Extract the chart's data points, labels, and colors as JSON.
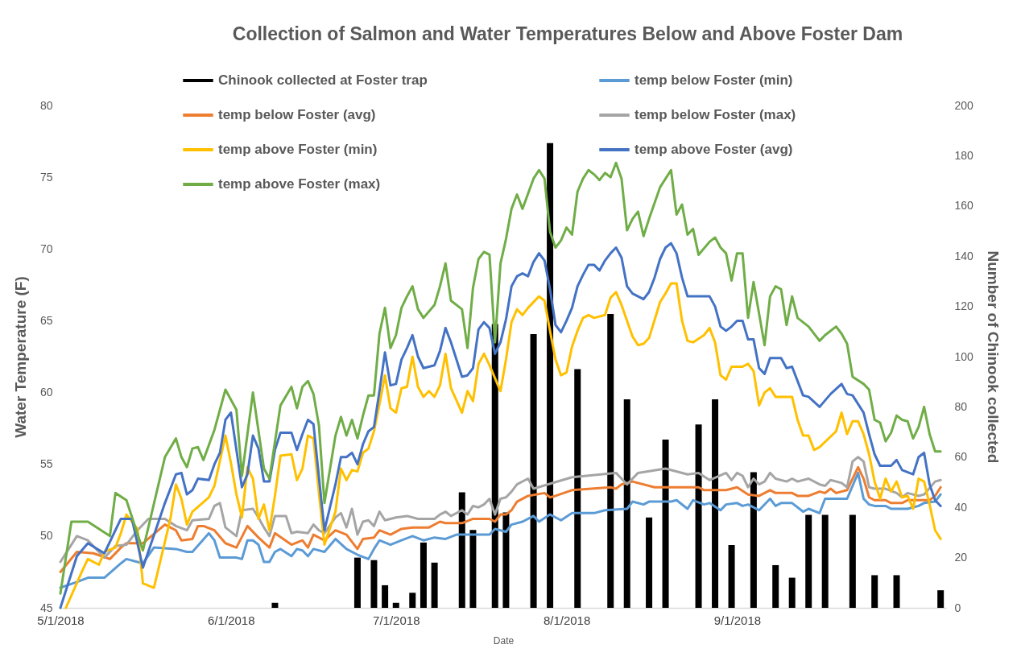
{
  "chart_data": {
    "type": "line",
    "title": "Collection of Salmon and Water Temperatures Below and Above Foster Dam",
    "xlabel": "Date",
    "ylabel": "Water Temperature (F)",
    "y2label": "Number of Chinook collected",
    "legend": "top",
    "xlim": [
      "2018-05-01",
      "2018-10-09"
    ],
    "xticks": [
      {
        "value": "2018-05-01",
        "label": "5/1/2018"
      },
      {
        "value": "2018-06-01",
        "label": "6/1/2018"
      },
      {
        "value": "2018-07-01",
        "label": "7/1/2018"
      },
      {
        "value": "2018-08-01",
        "label": "8/1/2018"
      },
      {
        "value": "2018-09-01",
        "label": "9/1/2018"
      }
    ],
    "ylim": [
      45,
      80
    ],
    "yticks": [
      45,
      50,
      55,
      60,
      65,
      70,
      75,
      80
    ],
    "y2lim": [
      0,
      200
    ],
    "y2ticks": [
      0,
      20,
      40,
      60,
      80,
      100,
      120,
      140,
      160,
      180,
      200
    ],
    "series": [
      {
        "name": "Chinook collected at Foster trap",
        "type": "bar",
        "axis": "y2",
        "color": "#000000",
        "x": [
          "2018-06-09",
          "2018-06-24",
          "2018-06-27",
          "2018-06-29",
          "2018-07-01",
          "2018-07-04",
          "2018-07-06",
          "2018-07-08",
          "2018-07-13",
          "2018-07-15",
          "2018-07-19",
          "2018-07-21",
          "2018-07-26",
          "2018-07-29",
          "2018-08-03",
          "2018-08-09",
          "2018-08-12",
          "2018-08-16",
          "2018-08-19",
          "2018-08-25",
          "2018-08-28",
          "2018-08-31",
          "2018-09-04",
          "2018-09-08",
          "2018-09-11",
          "2018-09-14",
          "2018-09-17",
          "2018-09-22",
          "2018-09-26",
          "2018-09-30",
          "2018-10-08"
        ],
        "values": [
          2,
          20,
          19,
          9,
          2,
          6,
          26,
          18,
          46,
          31,
          113,
          38,
          109,
          185,
          95,
          117,
          83,
          36,
          67,
          73,
          83,
          25,
          54,
          17,
          12,
          37,
          37,
          37,
          13,
          13,
          7
        ]
      },
      {
        "name": "temp below Foster (min)",
        "color": "#5b9bd5",
        "x": [
          "2018-05-01",
          "2018-05-04",
          "2018-05-06",
          "2018-05-09",
          "2018-05-12",
          "2018-05-13",
          "2018-05-16",
          "2018-05-18",
          "2018-05-22",
          "2018-05-24",
          "2018-05-25",
          "2018-05-28",
          "2018-05-29",
          "2018-05-30",
          "2018-06-02",
          "2018-06-03",
          "2018-06-04",
          "2018-06-05",
          "2018-06-06",
          "2018-06-07",
          "2018-06-08",
          "2018-06-09",
          "2018-06-10",
          "2018-06-12",
          "2018-06-13",
          "2018-06-14",
          "2018-06-15",
          "2018-06-16",
          "2018-06-18",
          "2018-06-20",
          "2018-06-22",
          "2018-06-24",
          "2018-06-26",
          "2018-06-27",
          "2018-06-28",
          "2018-06-30",
          "2018-07-02",
          "2018-07-04",
          "2018-07-06",
          "2018-07-08",
          "2018-07-10",
          "2018-07-12",
          "2018-07-16",
          "2018-07-18",
          "2018-07-19",
          "2018-07-21",
          "2018-07-22",
          "2018-07-24",
          "2018-07-26",
          "2018-07-27",
          "2018-07-29",
          "2018-07-31",
          "2018-08-02",
          "2018-08-06",
          "2018-08-08",
          "2018-08-12",
          "2018-08-13",
          "2018-08-15",
          "2018-08-16",
          "2018-08-20",
          "2018-08-21",
          "2018-08-23",
          "2018-08-24",
          "2018-08-26",
          "2018-08-27",
          "2018-08-29",
          "2018-08-30",
          "2018-09-01",
          "2018-09-02",
          "2018-09-03",
          "2018-09-05",
          "2018-09-07",
          "2018-09-08",
          "2018-09-09",
          "2018-09-11",
          "2018-09-13",
          "2018-09-14",
          "2018-09-16",
          "2018-09-17",
          "2018-09-21",
          "2018-09-23",
          "2018-09-24",
          "2018-09-25",
          "2018-09-26",
          "2018-09-28",
          "2018-09-29",
          "2018-10-02",
          "2018-10-04",
          "2018-10-05",
          "2018-10-07",
          "2018-10-08"
        ],
        "values": [
          46.4,
          46.8,
          47.1,
          47.1,
          48.1,
          48.4,
          48.1,
          49.2,
          49.1,
          48.9,
          48.9,
          50.2,
          49.7,
          48.5,
          48.5,
          48.4,
          49.7,
          49.7,
          49.4,
          48.2,
          48.2,
          48.9,
          49.1,
          48.6,
          49.1,
          49.0,
          48.6,
          49.1,
          48.9,
          49.8,
          49.1,
          48.7,
          48.4,
          49.1,
          49.7,
          49.4,
          49.7,
          50.0,
          49.7,
          49.9,
          49.8,
          50.1,
          50.1,
          50.1,
          50.5,
          50.3,
          50.8,
          51.0,
          51.4,
          51.0,
          51.5,
          51.1,
          51.6,
          51.6,
          51.8,
          51.9,
          52.4,
          52.2,
          52.4,
          52.4,
          52.5,
          51.9,
          52.5,
          52.2,
          52.3,
          51.8,
          52.2,
          52.3,
          52.1,
          52.2,
          51.8,
          52.6,
          52.1,
          52.3,
          52.3,
          51.7,
          51.9,
          51.6,
          52.6,
          52.6,
          54.4,
          52.6,
          52.2,
          52.1,
          52.1,
          51.9,
          51.9,
          52.1,
          52.3,
          52.4,
          52.9
        ]
      },
      {
        "name": "temp below Foster (avg)",
        "color": "#ed7d31",
        "x": [
          "2018-05-01",
          "2018-05-04",
          "2018-05-07",
          "2018-05-10",
          "2018-05-12",
          "2018-05-13",
          "2018-05-16",
          "2018-05-20",
          "2018-05-22",
          "2018-05-23",
          "2018-05-25",
          "2018-05-26",
          "2018-05-27",
          "2018-05-29",
          "2018-05-31",
          "2018-06-02",
          "2018-06-04",
          "2018-06-06",
          "2018-06-08",
          "2018-06-09",
          "2018-06-12",
          "2018-06-14",
          "2018-06-15",
          "2018-06-16",
          "2018-06-18",
          "2018-06-20",
          "2018-06-22",
          "2018-06-24",
          "2018-06-25",
          "2018-06-27",
          "2018-06-28",
          "2018-06-30",
          "2018-07-02",
          "2018-07-04",
          "2018-07-07",
          "2018-07-09",
          "2018-07-10",
          "2018-07-13",
          "2018-07-15",
          "2018-07-18",
          "2018-07-19",
          "2018-07-20",
          "2018-07-21",
          "2018-07-22",
          "2018-07-23",
          "2018-07-25",
          "2018-07-28",
          "2018-07-29",
          "2018-07-30",
          "2018-08-02",
          "2018-08-09",
          "2018-08-10",
          "2018-08-11",
          "2018-08-13",
          "2018-08-17",
          "2018-08-25",
          "2018-08-26",
          "2018-08-30",
          "2018-09-01",
          "2018-09-03",
          "2018-09-05",
          "2018-09-07",
          "2018-09-08",
          "2018-09-11",
          "2018-09-12",
          "2018-09-14",
          "2018-09-16",
          "2018-09-17",
          "2018-09-18",
          "2018-09-19",
          "2018-09-21",
          "2018-09-23",
          "2018-09-24",
          "2018-09-25",
          "2018-09-26",
          "2018-09-28",
          "2018-09-29",
          "2018-10-01",
          "2018-10-02",
          "2018-10-06",
          "2018-10-07",
          "2018-10-08"
        ],
        "values": [
          47.5,
          48.9,
          48.8,
          48.4,
          49.2,
          49.5,
          49.5,
          50.8,
          50.4,
          49.7,
          49.8,
          50.7,
          50.7,
          50.4,
          49.5,
          49.2,
          50.7,
          49.9,
          49.2,
          50.2,
          49.4,
          49.7,
          49.2,
          50.1,
          49.7,
          50.4,
          50.1,
          49.1,
          49.8,
          49.9,
          50.4,
          50.1,
          50.5,
          50.6,
          50.6,
          51.0,
          50.9,
          50.9,
          51.2,
          51.2,
          51.0,
          51.5,
          51.5,
          51.8,
          52.4,
          52.8,
          53.0,
          52.7,
          52.8,
          53.2,
          53.4,
          53.3,
          53.6,
          53.8,
          53.4,
          53.4,
          53.2,
          53.2,
          53.4,
          52.9,
          52.8,
          53.2,
          53.0,
          53.0,
          52.8,
          52.8,
          53.1,
          53.0,
          53.3,
          53.0,
          53.2,
          54.8,
          54.0,
          52.7,
          52.5,
          52.5,
          52.3,
          52.3,
          52.5,
          52.5,
          52.8,
          53.4
        ]
      },
      {
        "name": "temp below Foster (max)",
        "color": "#a5a5a5",
        "x": [
          "2018-05-01",
          "2018-05-04",
          "2018-05-06",
          "2018-05-09",
          "2018-05-11",
          "2018-05-13",
          "2018-05-15",
          "2018-05-17",
          "2018-05-20",
          "2018-05-22",
          "2018-05-24",
          "2018-05-25",
          "2018-05-28",
          "2018-05-29",
          "2018-05-30",
          "2018-05-31",
          "2018-06-02",
          "2018-06-03",
          "2018-06-05",
          "2018-06-06",
          "2018-06-07",
          "2018-06-08",
          "2018-06-09",
          "2018-06-11",
          "2018-06-12",
          "2018-06-13",
          "2018-06-15",
          "2018-06-16",
          "2018-06-17",
          "2018-06-18",
          "2018-06-20",
          "2018-06-21",
          "2018-06-22",
          "2018-06-23",
          "2018-06-24",
          "2018-06-25",
          "2018-06-26",
          "2018-06-27",
          "2018-06-28",
          "2018-06-29",
          "2018-07-01",
          "2018-07-03",
          "2018-07-05",
          "2018-07-08",
          "2018-07-09",
          "2018-07-10",
          "2018-07-11",
          "2018-07-13",
          "2018-07-14",
          "2018-07-15",
          "2018-07-16",
          "2018-07-17",
          "2018-07-18",
          "2018-07-19",
          "2018-07-20",
          "2018-07-21",
          "2018-07-22",
          "2018-07-23",
          "2018-07-25",
          "2018-07-26",
          "2018-08-02",
          "2018-08-10",
          "2018-08-12",
          "2018-08-14",
          "2018-08-19",
          "2018-08-23",
          "2018-08-25",
          "2018-08-27",
          "2018-08-30",
          "2018-08-31",
          "2018-09-01",
          "2018-09-02",
          "2018-09-03",
          "2018-09-04",
          "2018-09-05",
          "2018-09-06",
          "2018-09-07",
          "2018-09-08",
          "2018-09-10",
          "2018-09-11",
          "2018-09-12",
          "2018-09-14",
          "2018-09-16",
          "2018-09-17",
          "2018-09-18",
          "2018-09-20",
          "2018-09-21",
          "2018-09-22",
          "2018-09-23",
          "2018-09-24",
          "2018-09-25",
          "2018-09-26",
          "2018-09-28",
          "2018-09-30",
          "2018-10-01",
          "2018-10-02",
          "2018-10-04",
          "2018-10-05",
          "2018-10-07",
          "2018-10-08"
        ],
        "values": [
          48.2,
          50.0,
          49.7,
          48.5,
          49.3,
          49.4,
          50.4,
          51.2,
          51.2,
          50.7,
          50.4,
          51.1,
          51.2,
          52.1,
          52.3,
          50.6,
          50.0,
          51.8,
          51.9,
          51.3,
          50.6,
          50.0,
          51.4,
          51.4,
          50.2,
          50.3,
          50.2,
          50.8,
          50.4,
          50.2,
          51.3,
          51.6,
          50.6,
          51.9,
          50.1,
          51.0,
          51.1,
          50.7,
          51.7,
          51.1,
          51.3,
          51.4,
          51.2,
          51.2,
          51.5,
          51.7,
          51.4,
          51.8,
          51.5,
          52.1,
          52.0,
          52.2,
          52.6,
          51.5,
          52.6,
          52.7,
          53.1,
          53.6,
          54.0,
          53.3,
          54.1,
          54.4,
          53.6,
          54.4,
          54.7,
          54.3,
          54.4,
          53.9,
          54.4,
          53.9,
          54.4,
          54.2,
          53.4,
          54.0,
          53.6,
          53.8,
          54.4,
          54.0,
          53.8,
          54.0,
          53.8,
          54.0,
          53.6,
          53.5,
          53.9,
          53.7,
          53.4,
          55.2,
          55.5,
          55.2,
          53.4,
          53.3,
          53.3,
          53.0,
          52.7,
          53.0,
          52.8,
          52.9,
          53.8,
          53.9
        ]
      },
      {
        "name": "temp above Foster (min)",
        "color": "#ffc000",
        "x": [
          "2018-05-02",
          "2018-05-05",
          "2018-05-06",
          "2018-05-08",
          "2018-05-09",
          "2018-05-11",
          "2018-05-12",
          "2018-05-13",
          "2018-05-15",
          "2018-05-16",
          "2018-05-18",
          "2018-05-21",
          "2018-05-22",
          "2018-05-23",
          "2018-05-24",
          "2018-05-25",
          "2018-05-28",
          "2018-05-29",
          "2018-05-31",
          "2018-06-01",
          "2018-06-02",
          "2018-06-03",
          "2018-06-04",
          "2018-06-05",
          "2018-06-06",
          "2018-06-07",
          "2018-06-08",
          "2018-06-09",
          "2018-06-10",
          "2018-06-12",
          "2018-06-13",
          "2018-06-14",
          "2018-06-15",
          "2018-06-16",
          "2018-06-17",
          "2018-06-18",
          "2018-06-20",
          "2018-06-21",
          "2018-06-22",
          "2018-06-23",
          "2018-06-24",
          "2018-06-25",
          "2018-06-26",
          "2018-06-27",
          "2018-06-28",
          "2018-06-29",
          "2018-06-30",
          "2018-07-01",
          "2018-07-02",
          "2018-07-03",
          "2018-07-04",
          "2018-07-05",
          "2018-07-06",
          "2018-07-07",
          "2018-07-08",
          "2018-07-09",
          "2018-07-10",
          "2018-07-11",
          "2018-07-13",
          "2018-07-14",
          "2018-07-15",
          "2018-07-16",
          "2018-07-17",
          "2018-07-18",
          "2018-07-20",
          "2018-07-21",
          "2018-07-22",
          "2018-07-23",
          "2018-07-24",
          "2018-07-25",
          "2018-07-27",
          "2018-07-28",
          "2018-07-29",
          "2018-07-30",
          "2018-07-31",
          "2018-08-01",
          "2018-08-02",
          "2018-08-03",
          "2018-08-04",
          "2018-08-05",
          "2018-08-06",
          "2018-08-08",
          "2018-08-09",
          "2018-08-10",
          "2018-08-11",
          "2018-08-12",
          "2018-08-13",
          "2018-08-14",
          "2018-08-15",
          "2018-08-16",
          "2018-08-18",
          "2018-08-19",
          "2018-08-20",
          "2018-08-21",
          "2018-08-22",
          "2018-08-23",
          "2018-08-24",
          "2018-08-26",
          "2018-08-27",
          "2018-08-28",
          "2018-08-29",
          "2018-08-30",
          "2018-08-31",
          "2018-09-01",
          "2018-09-02",
          "2018-09-03",
          "2018-09-04",
          "2018-09-05",
          "2018-09-06",
          "2018-09-07",
          "2018-09-08",
          "2018-09-11",
          "2018-09-12",
          "2018-09-13",
          "2018-09-14",
          "2018-09-15",
          "2018-09-16",
          "2018-09-19",
          "2018-09-20",
          "2018-09-21",
          "2018-09-22",
          "2018-09-23",
          "2018-09-24",
          "2018-09-25",
          "2018-09-26",
          "2018-09-27",
          "2018-09-28",
          "2018-09-29",
          "2018-09-30",
          "2018-10-01",
          "2018-10-02",
          "2018-10-03",
          "2018-10-04",
          "2018-10-05",
          "2018-10-06",
          "2018-10-07",
          "2018-10-08"
        ],
        "values": [
          45.0,
          47.6,
          48.4,
          48.0,
          48.9,
          49.2,
          50.2,
          51.5,
          50.5,
          46.7,
          46.4,
          51.2,
          53.6,
          52.6,
          50.8,
          51.7,
          52.7,
          53.5,
          57.0,
          55.1,
          52.9,
          51.3,
          54.8,
          54.0,
          51.2,
          52.2,
          50.4,
          52.8,
          55.6,
          55.7,
          53.9,
          54.7,
          57.0,
          56.8,
          53.0,
          49.4,
          51.7,
          54.7,
          53.9,
          54.6,
          54.5,
          55.8,
          56.1,
          57.3,
          59.2,
          61.2,
          58.9,
          58.6,
          60.3,
          60.4,
          62.5,
          60.4,
          59.7,
          60.1,
          59.7,
          60.5,
          62.7,
          60.3,
          58.6,
          60.1,
          59.4,
          62.0,
          62.7,
          61.9,
          60.1,
          62.3,
          64.9,
          65.8,
          65.4,
          65.9,
          66.7,
          66.4,
          64.3,
          62.3,
          61.2,
          61.4,
          63.2,
          64.3,
          65.2,
          65.4,
          65.2,
          65.4,
          66.6,
          67.0,
          66.1,
          65.0,
          63.9,
          63.3,
          63.4,
          63.8,
          66.3,
          66.9,
          67.6,
          67.6,
          65.0,
          63.6,
          63.5,
          64.0,
          64.5,
          63.5,
          61.2,
          60.9,
          61.8,
          61.8,
          61.8,
          62.0,
          61.5,
          59.1,
          60.0,
          60.3,
          59.7,
          59.7,
          58.1,
          57.0,
          57.0,
          56.0,
          56.2,
          57.3,
          58.6,
          57.1,
          58.0,
          58.0,
          57.1,
          55.7,
          53.8,
          52.6,
          54.0,
          53.1,
          53.8,
          52.7,
          52.8,
          51.9,
          54.0,
          53.8,
          52.2,
          50.4,
          49.8
        ]
      },
      {
        "name": "temp above Foster (avg)",
        "color": "#4472c4",
        "x": [
          "2018-05-01",
          "2018-05-04",
          "2018-05-06",
          "2018-05-09",
          "2018-05-11",
          "2018-05-12",
          "2018-05-14",
          "2018-05-16",
          "2018-05-20",
          "2018-05-22",
          "2018-05-23",
          "2018-05-24",
          "2018-05-25",
          "2018-05-26",
          "2018-05-28",
          "2018-05-29",
          "2018-05-30",
          "2018-05-31",
          "2018-06-01",
          "2018-06-03",
          "2018-06-04",
          "2018-06-05",
          "2018-06-06",
          "2018-06-07",
          "2018-06-08",
          "2018-06-09",
          "2018-06-10",
          "2018-06-12",
          "2018-06-13",
          "2018-06-14",
          "2018-06-15",
          "2018-06-16",
          "2018-06-17",
          "2018-06-18",
          "2018-06-20",
          "2018-06-21",
          "2018-06-22",
          "2018-06-23",
          "2018-06-24",
          "2018-06-25",
          "2018-06-26",
          "2018-06-27",
          "2018-06-28",
          "2018-06-29",
          "2018-06-30",
          "2018-07-01",
          "2018-07-02",
          "2018-07-03",
          "2018-07-04",
          "2018-07-05",
          "2018-07-06",
          "2018-07-08",
          "2018-07-09",
          "2018-07-10",
          "2018-07-11",
          "2018-07-13",
          "2018-07-14",
          "2018-07-15",
          "2018-07-16",
          "2018-07-17",
          "2018-07-18",
          "2018-07-19",
          "2018-07-20",
          "2018-07-21",
          "2018-07-22",
          "2018-07-23",
          "2018-07-24",
          "2018-07-25",
          "2018-07-26",
          "2018-07-27",
          "2018-07-28",
          "2018-07-29",
          "2018-07-30",
          "2018-07-31",
          "2018-08-01",
          "2018-08-02",
          "2018-08-03",
          "2018-08-04",
          "2018-08-05",
          "2018-08-06",
          "2018-08-07",
          "2018-08-08",
          "2018-08-09",
          "2018-08-10",
          "2018-08-11",
          "2018-08-12",
          "2018-08-13",
          "2018-08-14",
          "2018-08-15",
          "2018-08-16",
          "2018-08-17",
          "2018-08-18",
          "2018-08-19",
          "2018-08-20",
          "2018-08-21",
          "2018-08-22",
          "2018-08-23",
          "2018-08-25",
          "2018-08-27",
          "2018-08-28",
          "2018-08-29",
          "2018-08-30",
          "2018-08-31",
          "2018-09-01",
          "2018-09-02",
          "2018-09-03",
          "2018-09-04",
          "2018-09-05",
          "2018-09-06",
          "2018-09-07",
          "2018-09-09",
          "2018-09-10",
          "2018-09-11",
          "2018-09-13",
          "2018-09-14",
          "2018-09-16",
          "2018-09-18",
          "2018-09-20",
          "2018-09-21",
          "2018-09-22",
          "2018-09-24",
          "2018-09-25",
          "2018-09-26",
          "2018-09-27",
          "2018-09-29",
          "2018-09-30",
          "2018-10-01",
          "2018-10-03",
          "2018-10-04",
          "2018-10-05",
          "2018-10-06",
          "2018-10-07",
          "2018-10-08"
        ],
        "values": [
          45.0,
          48.6,
          49.5,
          48.8,
          50.4,
          51.2,
          51.2,
          47.8,
          52.3,
          54.3,
          54.4,
          52.9,
          53.2,
          54.0,
          53.9,
          55.0,
          55.8,
          58.1,
          58.6,
          53.4,
          54.3,
          57.0,
          56.1,
          53.8,
          53.8,
          56.0,
          57.2,
          57.2,
          56.0,
          57.1,
          58.1,
          57.8,
          54.1,
          50.4,
          53.6,
          55.5,
          55.5,
          55.8,
          55.0,
          56.4,
          57.3,
          57.6,
          60.1,
          62.8,
          60.5,
          60.6,
          62.3,
          63.1,
          64.0,
          62.5,
          61.7,
          61.9,
          62.9,
          64.5,
          63.5,
          61.1,
          61.2,
          61.7,
          64.4,
          64.9,
          64.5,
          62.7,
          63.5,
          65.1,
          67.4,
          68.1,
          68.3,
          68.1,
          69.1,
          69.7,
          69.2,
          67.2,
          64.7,
          64.2,
          65.0,
          65.9,
          67.4,
          68.2,
          68.9,
          68.9,
          68.5,
          69.2,
          69.7,
          70.1,
          69.4,
          67.4,
          66.9,
          66.7,
          66.5,
          67.0,
          68.0,
          69.3,
          70.1,
          70.4,
          69.7,
          68.0,
          66.7,
          66.7,
          66.7,
          66.0,
          64.6,
          64.3,
          64.6,
          65.0,
          65.0,
          63.7,
          63.7,
          61.7,
          61.3,
          62.4,
          62.4,
          61.7,
          61.8,
          59.8,
          59.7,
          59.0,
          59.9,
          60.6,
          59.9,
          59.8,
          58.6,
          57.1,
          55.7,
          54.9,
          54.9,
          55.3,
          54.6,
          54.3,
          55.5,
          55.8,
          53.6,
          52.5,
          52.1
        ]
      },
      {
        "name": "temp above Foster (max)",
        "color": "#70ad47",
        "x": [
          "2018-05-01",
          "2018-05-03",
          "2018-05-06",
          "2018-05-10",
          "2018-05-11",
          "2018-05-13",
          "2018-05-16",
          "2018-05-20",
          "2018-05-22",
          "2018-05-23",
          "2018-05-24",
          "2018-05-25",
          "2018-05-26",
          "2018-05-27",
          "2018-05-29",
          "2018-05-31",
          "2018-06-02",
          "2018-06-03",
          "2018-06-05",
          "2018-06-07",
          "2018-06-08",
          "2018-06-10",
          "2018-06-12",
          "2018-06-13",
          "2018-06-14",
          "2018-06-15",
          "2018-06-16",
          "2018-06-17",
          "2018-06-18",
          "2018-06-20",
          "2018-06-21",
          "2018-06-22",
          "2018-06-23",
          "2018-06-24",
          "2018-06-25",
          "2018-06-26",
          "2018-06-27",
          "2018-06-28",
          "2018-06-29",
          "2018-06-30",
          "2018-07-01",
          "2018-07-02",
          "2018-07-03",
          "2018-07-04",
          "2018-07-05",
          "2018-07-06",
          "2018-07-08",
          "2018-07-09",
          "2018-07-10",
          "2018-07-11",
          "2018-07-13",
          "2018-07-14",
          "2018-07-15",
          "2018-07-16",
          "2018-07-17",
          "2018-07-18",
          "2018-07-19",
          "2018-07-20",
          "2018-07-21",
          "2018-07-22",
          "2018-07-23",
          "2018-07-24",
          "2018-07-26",
          "2018-07-27",
          "2018-07-28",
          "2018-07-29",
          "2018-07-30",
          "2018-07-31",
          "2018-08-01",
          "2018-08-02",
          "2018-08-03",
          "2018-08-04",
          "2018-08-05",
          "2018-08-06",
          "2018-08-07",
          "2018-08-08",
          "2018-08-09",
          "2018-08-10",
          "2018-08-11",
          "2018-08-12",
          "2018-08-13",
          "2018-08-14",
          "2018-08-15",
          "2018-08-16",
          "2018-08-18",
          "2018-08-20",
          "2018-08-21",
          "2018-08-22",
          "2018-08-23",
          "2018-08-24",
          "2018-08-25",
          "2018-08-27",
          "2018-08-28",
          "2018-08-29",
          "2018-08-30",
          "2018-08-31",
          "2018-09-01",
          "2018-09-02",
          "2018-09-03",
          "2018-09-04",
          "2018-09-06",
          "2018-09-07",
          "2018-09-08",
          "2018-09-09",
          "2018-09-10",
          "2018-09-11",
          "2018-09-12",
          "2018-09-14",
          "2018-09-16",
          "2018-09-17",
          "2018-09-19",
          "2018-09-20",
          "2018-09-21",
          "2018-09-22",
          "2018-09-24",
          "2018-09-25",
          "2018-09-26",
          "2018-09-27",
          "2018-09-28",
          "2018-09-29",
          "2018-09-30",
          "2018-10-01",
          "2018-10-02",
          "2018-10-03",
          "2018-10-04",
          "2018-10-05",
          "2018-10-06",
          "2018-10-07",
          "2018-10-08"
        ],
        "values": [
          46.0,
          51.0,
          51.0,
          50.0,
          53.0,
          52.5,
          49.0,
          55.5,
          56.8,
          55.5,
          54.8,
          56.1,
          56.2,
          55.3,
          57.4,
          60.2,
          58.8,
          54.2,
          60.0,
          54.7,
          54.0,
          59.1,
          60.4,
          58.9,
          60.4,
          60.8,
          59.9,
          57.7,
          52.3,
          57.0,
          58.3,
          57.0,
          58.1,
          56.8,
          58.4,
          59.8,
          59.8,
          64.1,
          65.9,
          63.1,
          64.0,
          65.9,
          66.7,
          67.4,
          65.8,
          65.2,
          66.1,
          67.4,
          69.0,
          66.4,
          65.8,
          63.1,
          67.3,
          69.3,
          69.8,
          69.6,
          63.5,
          69.0,
          70.7,
          72.8,
          73.8,
          72.8,
          74.9,
          75.5,
          74.9,
          71.2,
          70.1,
          70.6,
          71.5,
          71.0,
          74.0,
          74.9,
          75.5,
          75.2,
          74.8,
          75.3,
          75.0,
          76.0,
          74.9,
          71.3,
          72.1,
          72.6,
          70.9,
          72.1,
          74.3,
          75.5,
          72.4,
          73.1,
          71.0,
          71.4,
          69.6,
          70.5,
          70.8,
          70.1,
          69.7,
          67.8,
          69.7,
          69.7,
          65.2,
          67.7,
          63.3,
          66.7,
          67.4,
          67.2,
          64.7,
          66.7,
          65.2,
          64.6,
          63.6,
          64.0,
          64.6,
          64.1,
          63.4,
          61.1,
          60.6,
          60.2,
          58.1,
          57.9,
          56.6,
          57.2,
          58.4,
          58.1,
          58.0,
          56.8,
          57.6,
          59.0,
          57.1,
          55.9,
          55.9
        ]
      }
    ]
  }
}
